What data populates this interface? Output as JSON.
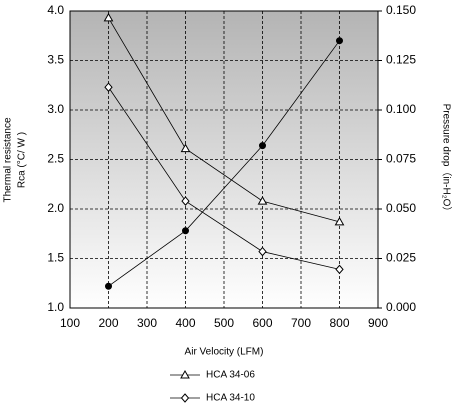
{
  "chart_data": {
    "type": "line",
    "xlabel": "Air Velocity (LFM)",
    "ylabel": [
      "Thermal resistance",
      "Rca (°C/ W )"
    ],
    "y2label": "Pressure drop（in-H₂O）",
    "xlim": [
      100,
      900
    ],
    "xticks": [
      100,
      200,
      300,
      400,
      500,
      600,
      700,
      800,
      900
    ],
    "ylim": [
      1.0,
      4.0
    ],
    "yticks": [
      {
        "value": 1.0,
        "label": "1.0"
      },
      {
        "value": 1.5,
        "label": "1.5"
      },
      {
        "value": 2.0,
        "label": "2.0"
      },
      {
        "value": 2.5,
        "label": "2.5"
      },
      {
        "value": 3.0,
        "label": "3.0"
      },
      {
        "value": 3.5,
        "label": "3.5"
      },
      {
        "value": 4.0,
        "label": "4.0"
      }
    ],
    "y2lim": [
      0,
      0.15
    ],
    "y2ticks": [
      {
        "value": 0,
        "label": "0.000"
      },
      {
        "value": 0.025,
        "label": "0.025"
      },
      {
        "value": 0.05,
        "label": "0.050"
      },
      {
        "value": 0.075,
        "label": "0.075"
      },
      {
        "value": 0.1,
        "label": "0.100"
      },
      {
        "value": 0.125,
        "label": "0.125"
      },
      {
        "value": 0.15,
        "label": "0.150"
      }
    ],
    "grid": true,
    "legend": "bottom",
    "x": [
      200,
      400,
      600,
      800
    ],
    "series": [
      {
        "name": "HCA 34-06",
        "color": "#000000",
        "marker": "triangle",
        "values": [
          3.93,
          2.61,
          2.08,
          1.87
        ]
      },
      {
        "name": "HCA 34-10",
        "color": "#000000",
        "marker": "diamond",
        "values": [
          3.23,
          2.08,
          1.57,
          1.39
        ]
      },
      {
        "color": "#000000",
        "marker": "dot",
        "axis": "y2",
        "values": [
          0.011,
          0.039,
          0.082,
          0.135
        ]
      }
    ]
  }
}
